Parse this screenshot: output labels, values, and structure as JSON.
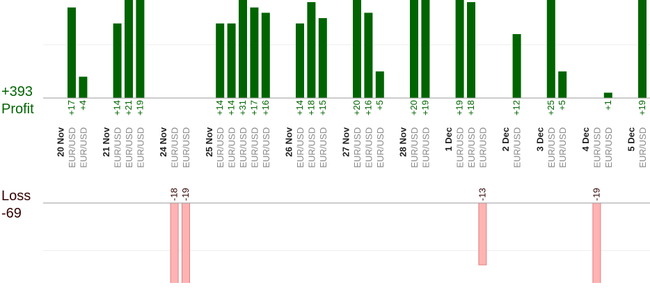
{
  "chart_data": {
    "type": "profit-loss",
    "profit_total": {
      "value": 393,
      "label": "+393"
    },
    "profit_title": "Profit",
    "loss_total": -69,
    "loss_title": "Loss",
    "profit_color": "#006400",
    "loss_color": "#ffb3b3",
    "profit_ylim": [
      0,
      18.4
    ],
    "profit_yticks": [
      10
    ],
    "loss_ylim": [
      -16.8,
      0
    ],
    "loss_yticks": [
      -10
    ],
    "days": [
      {
        "date": "20 Nov",
        "trades": [
          {
            "symbol": "EUR/USD",
            "value": 17,
            "label": "+17"
          },
          {
            "symbol": "EUR/USD",
            "value": 4,
            "label": "+4"
          }
        ]
      },
      {
        "date": "21 Nov",
        "trades": [
          {
            "symbol": "EUR/USD",
            "value": 14,
            "label": "+14"
          },
          {
            "symbol": "EUR/USD",
            "value": 21,
            "label": "+21"
          },
          {
            "symbol": "EUR/USD",
            "value": 19,
            "label": "+19"
          }
        ]
      },
      {
        "date": "24 Nov",
        "trades": [
          {
            "symbol": "EUR/USD",
            "value": -18,
            "label": "-18"
          },
          {
            "symbol": "EUR/USD",
            "value": -19,
            "label": "-19"
          }
        ]
      },
      {
        "date": "25 Nov",
        "trades": [
          {
            "symbol": "EUR/USD",
            "value": 14,
            "label": "+14"
          },
          {
            "symbol": "EUR/USD",
            "value": 14,
            "label": "+14"
          },
          {
            "symbol": "EUR/USD",
            "value": 31,
            "label": "+31"
          },
          {
            "symbol": "EUR/USD",
            "value": 17,
            "label": "+17"
          },
          {
            "symbol": "EUR/USD",
            "value": 16,
            "label": "+16"
          }
        ]
      },
      {
        "date": "26 Nov",
        "trades": [
          {
            "symbol": "EUR/USD",
            "value": 14,
            "label": "+14"
          },
          {
            "symbol": "EUR/USD",
            "value": 18,
            "label": "+18"
          },
          {
            "symbol": "EUR/USD",
            "value": 15,
            "label": "+15"
          }
        ]
      },
      {
        "date": "27 Nov",
        "trades": [
          {
            "symbol": "EUR/USD",
            "value": 20,
            "label": "+20"
          },
          {
            "symbol": "EUR/USD",
            "value": 16,
            "label": "+16"
          },
          {
            "symbol": "EUR/USD",
            "value": 5,
            "label": "+5"
          }
        ]
      },
      {
        "date": "28 Nov",
        "trades": [
          {
            "symbol": "EUR/USD",
            "value": 20,
            "label": "+20"
          },
          {
            "symbol": "EUR/USD",
            "value": 19,
            "label": "+19"
          }
        ]
      },
      {
        "date": "1 Dec",
        "trades": [
          {
            "symbol": "EUR/USD",
            "value": 19,
            "label": "+19"
          },
          {
            "symbol": "EUR/USD",
            "value": 18,
            "label": "+18"
          },
          {
            "symbol": "EUR/USD",
            "value": -13,
            "label": "-13"
          }
        ]
      },
      {
        "date": "2 Dec",
        "trades": [
          {
            "symbol": "EUR/USD",
            "value": 12,
            "label": "+12"
          }
        ]
      },
      {
        "date": "3 Dec",
        "trades": [
          {
            "symbol": "EUR/USD",
            "value": 25,
            "label": "+25"
          },
          {
            "symbol": "EUR/USD",
            "value": 5,
            "label": "+5"
          }
        ]
      },
      {
        "date": "4 Dec",
        "trades": [
          {
            "symbol": "EUR/USD",
            "value": -19,
            "label": "-19"
          },
          {
            "symbol": "EUR/USD",
            "value": 1,
            "label": "+1"
          }
        ]
      },
      {
        "date": "5 Dec",
        "trades": [
          {
            "symbol": "EUR/USD",
            "value": 19,
            "label": "+19"
          }
        ]
      }
    ]
  }
}
